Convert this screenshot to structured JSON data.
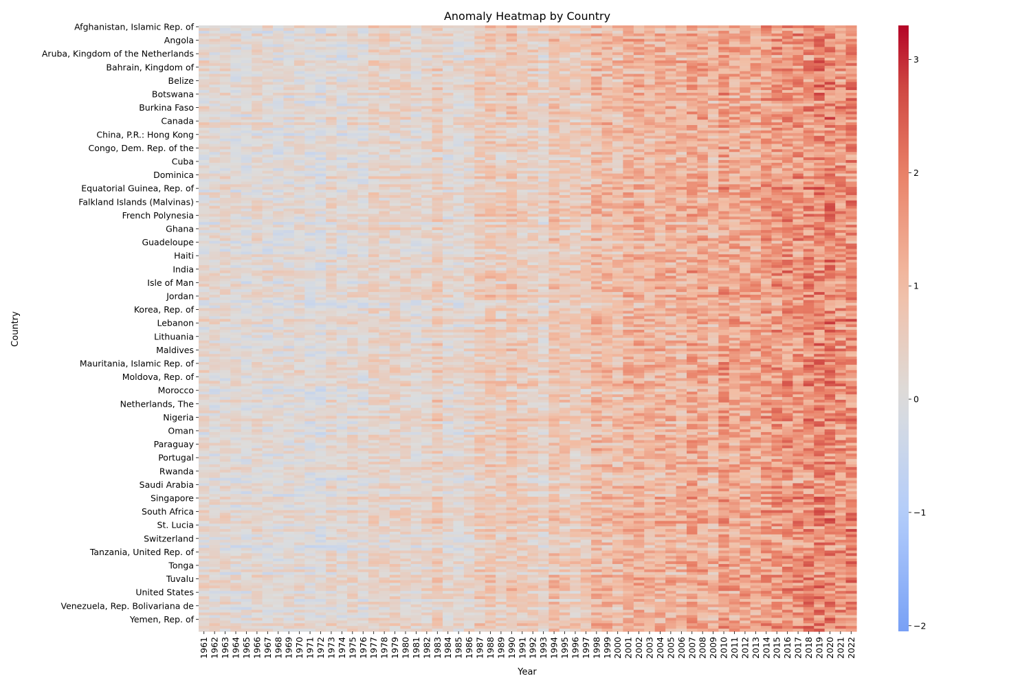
{
  "chart_data": {
    "type": "heatmap",
    "title": "Anomaly Heatmap by Country",
    "xlabel": "Year",
    "ylabel": "Country",
    "colormap": "coolwarm",
    "color_limits": [
      -2.05,
      3.3
    ],
    "colorbar_ticks": [
      "−2",
      "−1",
      "0",
      "1",
      "2",
      "3"
    ],
    "colorbar_tick_values": [
      -2,
      -1,
      0,
      1,
      2,
      3
    ],
    "years": [
      "1961",
      "1962",
      "1963",
      "1964",
      "1965",
      "1966",
      "1967",
      "1968",
      "1969",
      "1970",
      "1971",
      "1972",
      "1973",
      "1974",
      "1975",
      "1976",
      "1977",
      "1978",
      "1979",
      "1980",
      "1981",
      "1982",
      "1983",
      "1984",
      "1985",
      "1986",
      "1987",
      "1988",
      "1989",
      "1990",
      "1991",
      "1992",
      "1993",
      "1994",
      "1995",
      "1996",
      "1997",
      "1998",
      "1999",
      "2000",
      "2001",
      "2002",
      "2003",
      "2004",
      "2005",
      "2006",
      "2007",
      "2008",
      "2009",
      "2010",
      "2011",
      "2012",
      "2013",
      "2014",
      "2015",
      "2016",
      "2017",
      "2018",
      "2019",
      "2020",
      "2021",
      "2022"
    ],
    "country_row_count": 225,
    "country_tick_labels": [
      "Afghanistan, Islamic Rep. of",
      "Angola",
      "Aruba, Kingdom of the Netherlands",
      "Bahrain, Kingdom of",
      "Belize",
      "Botswana",
      "Burkina Faso",
      "Canada",
      "China, P.R.: Hong Kong",
      "Congo, Dem. Rep. of the",
      "Cuba",
      "Dominica",
      "Equatorial Guinea, Rep. of",
      "Falkland Islands (Malvinas)",
      "French Polynesia",
      "Ghana",
      "Guadeloupe",
      "Haiti",
      "India",
      "Isle of Man",
      "Jordan",
      "Korea, Rep. of",
      "Lebanon",
      "Lithuania",
      "Maldives",
      "Mauritania, Islamic Rep. of",
      "Moldova, Rep. of",
      "Morocco",
      "Netherlands, The",
      "Nigeria",
      "Oman",
      "Paraguay",
      "Portugal",
      "Rwanda",
      "Saudi Arabia",
      "Singapore",
      "South Africa",
      "St. Lucia",
      "Switzerland",
      "Tanzania, United Rep. of",
      "Tonga",
      "Tuvalu",
      "United States",
      "Venezuela, Rep. Bolivariana de",
      "Yemen, Rep. of"
    ],
    "mean_anomaly_by_year": [
      0.2,
      0.15,
      0.18,
      0.1,
      0.05,
      0.2,
      0.1,
      0.05,
      0.1,
      0.15,
      0.0,
      -0.05,
      0.25,
      0.05,
      0.25,
      0.1,
      0.4,
      0.3,
      0.35,
      0.3,
      0.2,
      0.25,
      0.55,
      0.2,
      0.15,
      0.25,
      0.55,
      0.65,
      0.5,
      0.7,
      0.55,
      0.5,
      0.3,
      0.75,
      0.6,
      0.55,
      0.65,
      1.0,
      0.95,
      0.85,
      1.1,
      1.15,
      1.05,
      1.1,
      1.1,
      1.1,
      1.35,
      1.25,
      1.05,
      1.5,
      1.25,
      1.3,
      1.3,
      1.5,
      1.55,
      1.65,
      1.6,
      1.75,
      1.8,
      1.85,
      1.65,
      1.75
    ]
  }
}
